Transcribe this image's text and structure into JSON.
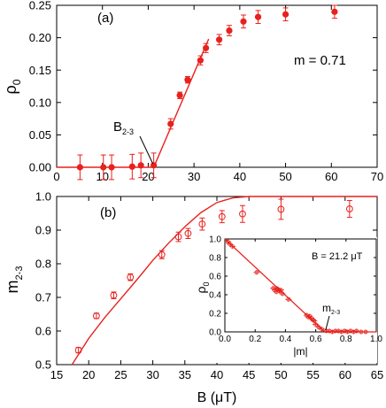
{
  "chart_data": [
    {
      "type": "scatter",
      "panel_label": "(a)",
      "xlabel": "",
      "ylabel": "ρ₀",
      "xlim": [
        0,
        70
      ],
      "ylim": [
        0,
        0.25
      ],
      "x_ticks": [
        0,
        10,
        20,
        30,
        40,
        50,
        60,
        70
      ],
      "y_ticks": [
        0.0,
        0.05,
        0.1,
        0.15,
        0.2,
        0.25
      ],
      "annotation_m": "m = 0.71",
      "annotation_b": {
        "main": "B",
        "sub": "2-3",
        "x": 21.2,
        "y": 0.0
      },
      "points": [
        {
          "x": 5.1,
          "y": 0.0,
          "err": 0.019
        },
        {
          "x": 10.2,
          "y": 0.0,
          "err": 0.019
        },
        {
          "x": 12.0,
          "y": 0.0,
          "err": 0.019
        },
        {
          "x": 16.5,
          "y": 0.001,
          "err": 0.019
        },
        {
          "x": 18.4,
          "y": 0.003,
          "err": 0.019
        },
        {
          "x": 21.2,
          "y": 0.003,
          "err": 0.019
        },
        {
          "x": 24.9,
          "y": 0.067,
          "err": 0.008
        },
        {
          "x": 26.9,
          "y": 0.111,
          "err": 0.005
        },
        {
          "x": 28.6,
          "y": 0.135,
          "err": 0.005
        },
        {
          "x": 31.4,
          "y": 0.165,
          "err": 0.007
        },
        {
          "x": 32.6,
          "y": 0.184,
          "err": 0.007
        },
        {
          "x": 35.5,
          "y": 0.197,
          "err": 0.008
        },
        {
          "x": 37.7,
          "y": 0.211,
          "err": 0.008
        },
        {
          "x": 40.8,
          "y": 0.225,
          "err": 0.01
        },
        {
          "x": 44.0,
          "y": 0.232,
          "err": 0.01
        },
        {
          "x": 50.0,
          "y": 0.236,
          "err": 0.01
        },
        {
          "x": 60.7,
          "y": 0.24,
          "err": 0.01
        }
      ],
      "fit_line": [
        [
          0,
          0
        ],
        [
          21.2,
          0
        ],
        [
          33.2,
          0.198
        ]
      ],
      "color": "#e8211d"
    },
    {
      "type": "scatter",
      "panel_label": "(b)",
      "xlabel": "B (μT)",
      "ylabel": "m₂₋₃",
      "xlim": [
        15,
        65
      ],
      "ylim": [
        0.5,
        1.0
      ],
      "x_ticks": [
        15,
        20,
        25,
        30,
        35,
        40,
        45,
        50,
        55,
        60,
        65
      ],
      "y_ticks": [
        0.5,
        0.6,
        0.7,
        0.8,
        0.9,
        1.0
      ],
      "points": [
        {
          "x": 18.4,
          "y": 0.543,
          "err": 0.008
        },
        {
          "x": 21.2,
          "y": 0.645,
          "err": 0.008
        },
        {
          "x": 23.9,
          "y": 0.706,
          "err": 0.01
        },
        {
          "x": 26.5,
          "y": 0.76,
          "err": 0.01
        },
        {
          "x": 31.4,
          "y": 0.827,
          "err": 0.012
        },
        {
          "x": 34.0,
          "y": 0.88,
          "err": 0.014
        },
        {
          "x": 35.5,
          "y": 0.89,
          "err": 0.015
        },
        {
          "x": 37.7,
          "y": 0.918,
          "err": 0.018
        },
        {
          "x": 40.8,
          "y": 0.94,
          "err": 0.018
        },
        {
          "x": 44.0,
          "y": 0.948,
          "err": 0.025
        },
        {
          "x": 50.0,
          "y": 0.962,
          "err": 0.03
        },
        {
          "x": 60.7,
          "y": 0.963,
          "err": 0.025
        }
      ],
      "curve": [
        [
          17.4,
          0.5
        ],
        [
          20,
          0.578
        ],
        [
          22.5,
          0.64
        ],
        [
          25,
          0.696
        ],
        [
          27.5,
          0.752
        ],
        [
          30,
          0.81
        ],
        [
          32.5,
          0.862
        ],
        [
          35,
          0.91
        ],
        [
          37.5,
          0.952
        ],
        [
          40,
          0.982
        ],
        [
          42.5,
          0.996
        ],
        [
          45,
          1.0
        ],
        [
          65,
          1.0
        ]
      ],
      "color": "#e8211d"
    },
    {
      "type": "scatter",
      "panel_label": "",
      "xlabel": "|m|",
      "ylabel": "ρ₀",
      "xlim": [
        0,
        1.0
      ],
      "ylim": [
        0,
        1.0
      ],
      "x_ticks": [
        0.0,
        0.2,
        0.4,
        0.6,
        0.8,
        1.0
      ],
      "y_ticks": [
        0.0,
        0.2,
        0.4,
        0.6,
        0.8,
        1.0
      ],
      "annotation_b": "B = 21.2 μT",
      "annotation_m": {
        "main": "m",
        "sub": "2-3",
        "x": 0.66,
        "y": 0.0
      },
      "points": [
        {
          "x": 0.02,
          "y": 0.97
        },
        {
          "x": 0.03,
          "y": 0.95
        },
        {
          "x": 0.05,
          "y": 0.92
        },
        {
          "x": 0.21,
          "y": 0.64
        },
        {
          "x": 0.32,
          "y": 0.47
        },
        {
          "x": 0.33,
          "y": 0.45
        },
        {
          "x": 0.34,
          "y": 0.47
        },
        {
          "x": 0.34,
          "y": 0.43
        },
        {
          "x": 0.35,
          "y": 0.46
        },
        {
          "x": 0.36,
          "y": 0.44
        },
        {
          "x": 0.37,
          "y": 0.45
        },
        {
          "x": 0.38,
          "y": 0.41
        },
        {
          "x": 0.42,
          "y": 0.35
        },
        {
          "x": 0.54,
          "y": 0.18
        },
        {
          "x": 0.55,
          "y": 0.16
        },
        {
          "x": 0.56,
          "y": 0.17
        },
        {
          "x": 0.57,
          "y": 0.15
        },
        {
          "x": 0.58,
          "y": 0.13
        },
        {
          "x": 0.59,
          "y": 0.12
        },
        {
          "x": 0.6,
          "y": 0.08
        },
        {
          "x": 0.62,
          "y": 0.05
        },
        {
          "x": 0.64,
          "y": 0.03
        },
        {
          "x": 0.67,
          "y": 0.01
        },
        {
          "x": 0.69,
          "y": 0.01
        },
        {
          "x": 0.71,
          "y": 0.0
        },
        {
          "x": 0.73,
          "y": 0.01
        },
        {
          "x": 0.75,
          "y": 0.01
        },
        {
          "x": 0.77,
          "y": 0.0
        },
        {
          "x": 0.79,
          "y": 0.01
        },
        {
          "x": 0.81,
          "y": 0.0
        },
        {
          "x": 0.83,
          "y": 0.01
        },
        {
          "x": 0.85,
          "y": 0.0
        },
        {
          "x": 0.87,
          "y": 0.01
        },
        {
          "x": 0.9,
          "y": 0.0
        },
        {
          "x": 0.93,
          "y": 0.0
        }
      ],
      "fit_line": [
        [
          0.0,
          1.0
        ],
        [
          0.66,
          0.0
        ],
        [
          1.0,
          0.0
        ]
      ],
      "color": "#e8211d"
    }
  ]
}
